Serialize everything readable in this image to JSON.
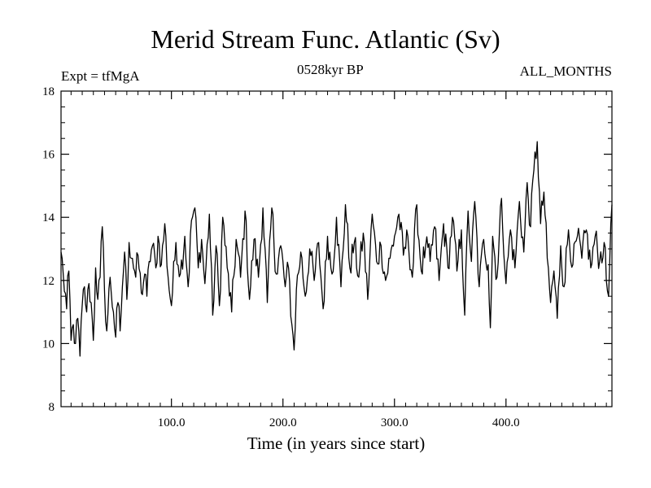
{
  "chart_data": {
    "type": "line",
    "title": "Merid Stream Func. Atlantic (Sv)",
    "subtitle_left": "Expt = tfMgA",
    "subtitle_center": "0528kyr BP",
    "subtitle_right": "ALL_MONTHS",
    "xlabel": "Time (in years since start)",
    "ylabel": "",
    "xlim": [
      1,
      495
    ],
    "ylim": [
      8,
      18
    ],
    "xticks": [
      100.0,
      200.0,
      300.0,
      400.0
    ],
    "xtick_labels": [
      "100.0",
      "200.0",
      "300.0",
      "400.0"
    ],
    "yticks": [
      8,
      10,
      12,
      14,
      16,
      18
    ],
    "ytick_labels": [
      "8",
      "10",
      "12",
      "14",
      "16",
      "18"
    ],
    "grid": false,
    "series": [
      {
        "name": "tfMgA",
        "color": "#000000",
        "anchors_x": [
          1,
          3,
          6,
          8,
          10,
          12,
          14,
          16,
          18,
          20,
          22,
          24,
          26,
          28,
          30,
          32,
          34,
          36,
          38,
          40,
          42,
          45,
          48,
          50,
          52,
          54,
          56,
          58,
          60,
          62,
          65,
          68,
          70,
          73,
          76,
          78,
          80,
          83,
          86,
          88,
          91,
          94,
          97,
          100,
          104,
          108,
          112,
          115,
          118,
          121,
          124,
          127,
          130,
          134,
          137,
          140,
          143,
          146,
          150,
          154,
          158,
          162,
          166,
          170,
          174,
          178,
          182,
          186,
          190,
          194,
          198,
          202,
          205,
          208,
          210,
          212,
          216,
          220,
          224,
          228,
          232,
          236,
          240,
          244,
          248,
          252,
          256,
          260,
          264,
          268,
          272,
          276,
          280,
          284,
          288,
          292,
          296,
          300,
          304,
          308,
          312,
          316,
          320,
          324,
          328,
          332,
          336,
          340,
          344,
          348,
          352,
          356,
          360,
          363,
          366,
          369,
          372,
          376,
          380,
          384,
          386,
          388,
          392,
          396,
          400,
          404,
          408,
          412,
          416,
          419,
          422,
          425,
          428,
          431,
          434,
          437,
          440,
          443,
          446,
          449,
          452,
          456,
          460,
          464,
          468,
          472,
          476,
          480,
          484,
          488,
          490,
          492,
          494,
          495
        ],
        "anchors_y": [
          12.9,
          12.2,
          11.1,
          12.3,
          10.1,
          10.6,
          10.0,
          10.8,
          9.6,
          11.2,
          11.8,
          11.0,
          11.9,
          11.3,
          10.1,
          12.4,
          11.4,
          12.1,
          13.7,
          11.7,
          10.4,
          12.1,
          11.0,
          10.2,
          11.3,
          10.4,
          11.8,
          12.9,
          11.4,
          13.2,
          12.7,
          12.1,
          12.8,
          11.6,
          12.2,
          11.5,
          12.6,
          13.1,
          12.4,
          13.4,
          12.5,
          13.8,
          12.1,
          11.2,
          13.2,
          12.2,
          13.4,
          11.8,
          13.9,
          14.3,
          12.4,
          13.3,
          11.9,
          14.1,
          10.9,
          13.1,
          11.2,
          14.0,
          12.4,
          11.0,
          13.3,
          12.1,
          14.2,
          11.4,
          13.3,
          12.1,
          14.3,
          11.3,
          14.3,
          12.2,
          13.1,
          11.8,
          12.4,
          10.6,
          9.8,
          11.7,
          12.9,
          11.5,
          13.0,
          12.0,
          13.2,
          11.1,
          13.4,
          12.2,
          14.0,
          11.8,
          14.4,
          12.4,
          13.2,
          12.1,
          13.5,
          11.4,
          14.1,
          12.6,
          13.1,
          12.0,
          12.7,
          13.4,
          14.1,
          12.8,
          13.4,
          12.1,
          14.4,
          12.3,
          13.1,
          12.6,
          13.7,
          12.0,
          13.8,
          12.4,
          14.0,
          12.3,
          13.6,
          10.9,
          14.2,
          12.6,
          14.5,
          11.8,
          13.3,
          12.5,
          10.5,
          13.4,
          12.1,
          14.6,
          11.9,
          13.6,
          12.4,
          14.5,
          12.9,
          15.1,
          13.7,
          15.5,
          16.4,
          13.8,
          14.8,
          12.7,
          11.3,
          12.3,
          10.8,
          13.1,
          11.8,
          13.6,
          12.5,
          13.4,
          12.7,
          13.6,
          12.4,
          13.4,
          12.6,
          13.2,
          12.0,
          11.5,
          13.8,
          14.4,
          12.2,
          14.1
        ]
      }
    ]
  }
}
